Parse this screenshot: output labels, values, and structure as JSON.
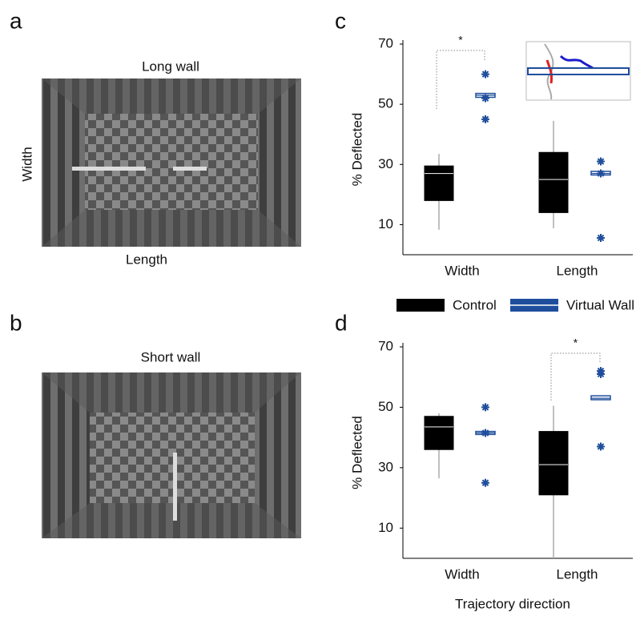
{
  "panel_labels": [
    "a",
    "b",
    "c",
    "d"
  ],
  "images": [
    {
      "title": "Long wall",
      "y_label": "Width",
      "x_label": "Length"
    },
    {
      "title": "Short wall"
    }
  ],
  "chart_data": [
    {
      "type": "box",
      "ylabel": "% Deflected",
      "categories": [
        "Width",
        "Length"
      ],
      "ylim": [
        0,
        70
      ],
      "yticks": [
        10,
        30,
        50,
        70
      ],
      "annotations": [
        "*"
      ],
      "series": [
        {
          "name": "Control",
          "color": "#000000",
          "boxes": [
            {
              "low": 8.3,
              "q1": 18,
              "median": 27,
              "q3": 29.5,
              "high": 33.5,
              "outliers": []
            },
            {
              "low": 8.8,
              "q1": 14,
              "median": 25,
              "q3": 34,
              "high": 44.5,
              "outliers": []
            }
          ]
        },
        {
          "name": "Virtual Wall",
          "color": "#1f4e9c",
          "boxes": [
            {
              "low": 52.3,
              "q1": 52.3,
              "median": 53,
              "q3": 53.6,
              "high": 53.6,
              "outliers": [
                60,
                52,
                45
              ]
            },
            {
              "low": 26.5,
              "q1": 26.5,
              "median": 27,
              "q3": 27.7,
              "high": 27.7,
              "outliers": [
                31,
                27,
                5.6
              ]
            }
          ]
        }
      ]
    },
    {
      "type": "box",
      "ylabel": "% Deflected",
      "xlabel": "Trajectory direction",
      "categories": [
        "Width",
        "Length"
      ],
      "ylim": [
        0,
        70
      ],
      "yticks": [
        10,
        30,
        50,
        70
      ],
      "annotations": [
        "*"
      ],
      "series": [
        {
          "name": "Control",
          "color": "#000000",
          "boxes": [
            {
              "low": 26.5,
              "q1": 36,
              "median": 43.5,
              "q3": 47,
              "high": 48,
              "outliers": []
            },
            {
              "low": 0,
              "q1": 21,
              "median": 31,
              "q3": 42,
              "high": 50.5,
              "outliers": []
            }
          ]
        },
        {
          "name": "Virtual Wall",
          "color": "#1f4e9c",
          "boxes": [
            {
              "low": 41,
              "q1": 41,
              "median": 41.5,
              "q3": 42,
              "high": 42,
              "outliers": [
                50,
                41.5,
                25
              ]
            },
            {
              "low": 52.5,
              "q1": 52.5,
              "median": 53,
              "q3": 53.8,
              "high": 53.8,
              "outliers": [
                62,
                61,
                37
              ]
            }
          ]
        }
      ]
    }
  ]
}
